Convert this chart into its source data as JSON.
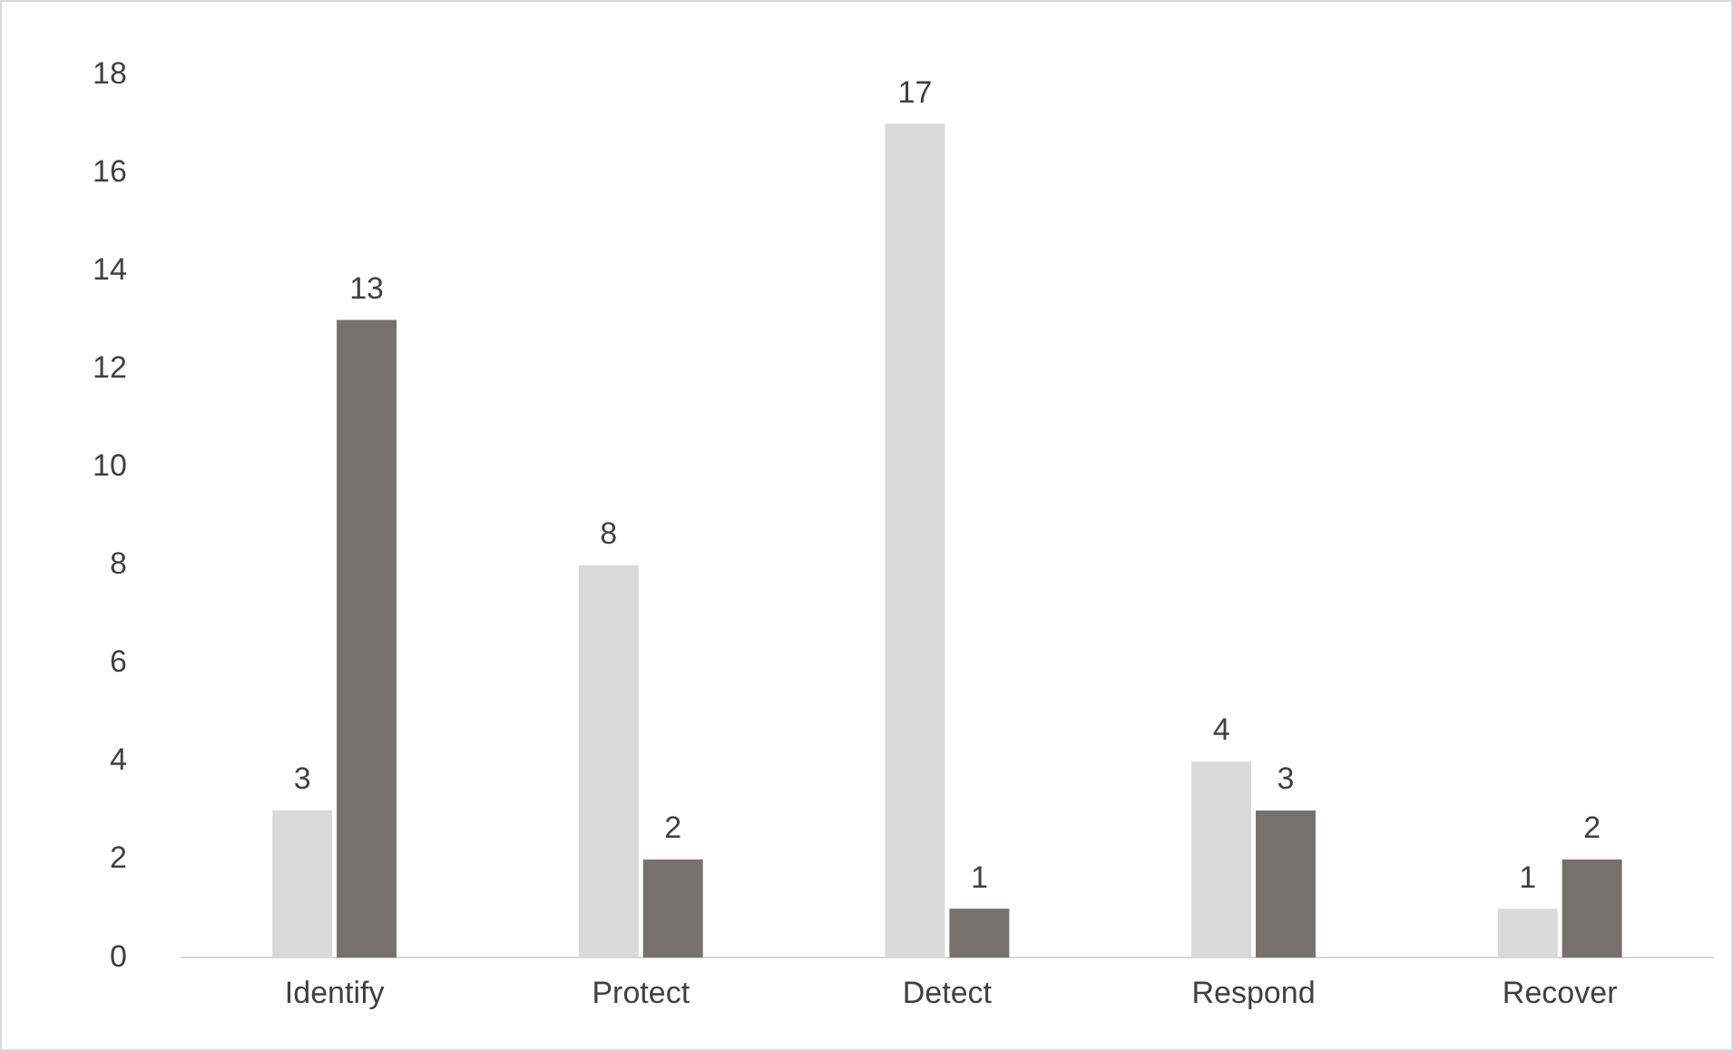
{
  "chart_data": {
    "type": "bar",
    "categories": [
      "Identify",
      "Protect",
      "Detect",
      "Respond",
      "Recover"
    ],
    "series": [
      {
        "color": "#d9d9d9",
        "values": [
          3,
          8,
          17,
          4,
          1
        ]
      },
      {
        "color": "#767171",
        "values": [
          13,
          2,
          1,
          3,
          2
        ]
      }
    ],
    "ylim": [
      0,
      18
    ],
    "yticks": [
      0,
      2,
      4,
      6,
      8,
      10,
      12,
      14,
      16,
      18
    ],
    "grid": false,
    "legend": false,
    "data_labels": true
  }
}
